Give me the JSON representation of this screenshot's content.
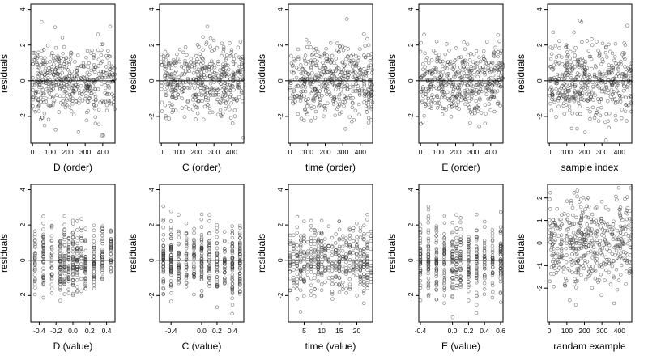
{
  "chart_data": [
    {
      "type": "scatter",
      "xlabel": "D (order)",
      "ylabel": "residuals",
      "xticks": [
        0,
        100,
        200,
        300,
        400
      ],
      "xlim": [
        -10,
        470
      ],
      "yticks": [
        -2,
        0,
        2,
        4
      ],
      "ylim": [
        -3.5,
        4.3
      ],
      "hline": 0,
      "series": [
        {
          "n": 470,
          "x_range": [
            0,
            470
          ],
          "y_center": 0,
          "y_spread": 1.0
        }
      ]
    },
    {
      "type": "scatter",
      "xlabel": "C (order)",
      "ylabel": "residuals",
      "xticks": [
        0,
        100,
        200,
        300,
        400
      ],
      "xlim": [
        -10,
        470
      ],
      "yticks": [
        -2,
        0,
        2,
        4
      ],
      "ylim": [
        -3.5,
        4.3
      ],
      "hline": 0,
      "series": [
        {
          "n": 470,
          "x_range": [
            0,
            470
          ],
          "y_center": 0,
          "y_spread": 1.0
        }
      ]
    },
    {
      "type": "scatter",
      "xlabel": "time (order)",
      "ylabel": "residuals",
      "xticks": [
        0,
        100,
        200,
        300,
        400
      ],
      "xlim": [
        -10,
        470
      ],
      "yticks": [
        -2,
        0,
        2,
        4
      ],
      "ylim": [
        -3.5,
        4.3
      ],
      "hline": 0,
      "series": [
        {
          "n": 470,
          "x_range": [
            0,
            470
          ],
          "y_center": 0,
          "y_spread": 1.0
        }
      ]
    },
    {
      "type": "scatter",
      "xlabel": "E (order)",
      "ylabel": "residuals",
      "xticks": [
        0,
        100,
        200,
        300,
        400
      ],
      "xlim": [
        -10,
        470
      ],
      "yticks": [
        -2,
        0,
        2,
        4
      ],
      "ylim": [
        -3.5,
        4.3
      ],
      "hline": 0,
      "series": [
        {
          "n": 470,
          "x_range": [
            0,
            470
          ],
          "y_center": 0,
          "y_spread": 1.0
        }
      ]
    },
    {
      "type": "scatter",
      "xlabel": "sample index",
      "ylabel": "residuals",
      "xticks": [
        0,
        100,
        200,
        300,
        400
      ],
      "xlim": [
        -10,
        470
      ],
      "yticks": [
        -2,
        0,
        2,
        4
      ],
      "ylim": [
        -3.5,
        4.3
      ],
      "hline": 0,
      "series": [
        {
          "n": 470,
          "x_range": [
            0,
            470
          ],
          "y_center": 0,
          "y_spread": 1.0
        }
      ]
    },
    {
      "type": "scatter",
      "xlabel": "D (value)",
      "ylabel": "residuals",
      "xticks": [
        -0.4,
        -0.2,
        0.0,
        0.2,
        0.4
      ],
      "xtick_labels": [
        "-0.4",
        "-0.2",
        "0.0",
        "0.2",
        "0.4"
      ],
      "xlim": [
        -0.5,
        0.5
      ],
      "yticks": [
        -2,
        0,
        2,
        4
      ],
      "ylim": [
        -3.5,
        4.3
      ],
      "hline": 0,
      "series": [
        {
          "n": 470,
          "x_discrete": [
            -0.45,
            -0.35,
            -0.25,
            -0.15,
            -0.1,
            -0.05,
            0.0,
            0.05,
            0.1,
            0.15,
            0.25,
            0.35,
            0.45
          ],
          "y_center": 0,
          "y_spread": 1.0
        }
      ]
    },
    {
      "type": "scatter",
      "xlabel": "C (value)",
      "ylabel": "residuals",
      "xticks": [
        -0.4,
        0.0,
        0.2,
        0.4
      ],
      "xtick_labels": [
        "-0.4",
        "0.0",
        "0.2",
        "0.4"
      ],
      "xlim": [
        -0.55,
        0.55
      ],
      "yticks": [
        -2,
        0,
        2,
        4
      ],
      "ylim": [
        -3.5,
        4.3
      ],
      "hline": 0,
      "series": [
        {
          "n": 470,
          "x_discrete": [
            -0.5,
            -0.4,
            -0.3,
            -0.2,
            -0.1,
            0.0,
            0.1,
            0.2,
            0.3,
            0.4,
            0.5
          ],
          "y_center": 0,
          "y_spread": 1.0
        }
      ]
    },
    {
      "type": "scatter",
      "xlabel": "time (value)",
      "ylabel": "residuals",
      "xticks": [
        5,
        10,
        15,
        20
      ],
      "xtick_labels": [
        "5",
        "10",
        "15",
        "20"
      ],
      "xlim": [
        0.5,
        24.5
      ],
      "yticks": [
        -2,
        0,
        2,
        4
      ],
      "ylim": [
        -3.5,
        4.3
      ],
      "hline": 0,
      "series": [
        {
          "n": 470,
          "x_discrete": [
            1,
            2,
            3,
            4,
            5,
            6,
            7,
            8,
            9,
            10,
            11,
            12,
            13,
            14,
            15,
            16,
            17,
            18,
            19,
            20,
            21,
            22,
            23,
            24
          ],
          "y_center": 0,
          "y_spread": 1.0
        }
      ]
    },
    {
      "type": "scatter",
      "xlabel": "E (value)",
      "ylabel": "residuals",
      "xticks": [
        -0.4,
        0.0,
        0.2,
        0.4,
        0.6
      ],
      "xtick_labels": [
        "-0.4",
        "0.0",
        "0.2",
        "0.4",
        "0.6"
      ],
      "xlim": [
        -0.42,
        0.63
      ],
      "yticks": [
        -2,
        0,
        2,
        4
      ],
      "ylim": [
        -3.5,
        4.3
      ],
      "hline": 0,
      "series": [
        {
          "n": 470,
          "x_discrete": [
            -0.4,
            -0.3,
            -0.2,
            -0.1,
            0.0,
            0.05,
            0.1,
            0.2,
            0.3,
            0.4,
            0.5,
            0.6
          ],
          "y_center": 0,
          "y_spread": 1.0
        }
      ]
    },
    {
      "type": "scatter",
      "xlabel": "randam example",
      "ylabel": "residuals",
      "xticks": [
        0,
        100,
        200,
        300,
        400
      ],
      "xlim": [
        -10,
        470
      ],
      "yticks": [
        -2,
        -1,
        0,
        1,
        2
      ],
      "ylim": [
        -3.5,
        2.6
      ],
      "hline": 0,
      "series": [
        {
          "n": 470,
          "x_range": [
            0,
            470
          ],
          "y_center": 0,
          "y_spread": 1.0
        }
      ]
    }
  ]
}
